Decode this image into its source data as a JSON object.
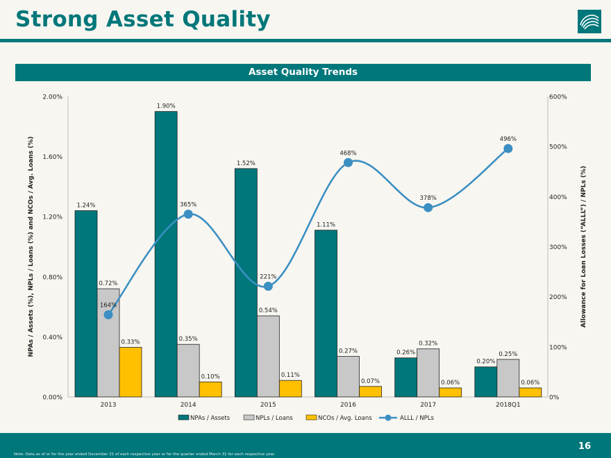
{
  "page": {
    "title": "Strong Asset Quality",
    "banner": "Asset Quality Trends",
    "page_number": "16",
    "footnote": "Note:  Data as of or for the year ended December 31 of each respective year or for the quarter ended March 31 for each respective year."
  },
  "colors": {
    "teal": "#00777a",
    "bar_gray": "#c8c8c8",
    "bar_gold": "#ffc000",
    "line_blue": "#3b8fc2"
  },
  "chart_data": {
    "type": "bar",
    "title": "Asset Quality Trends",
    "categories": [
      "2013",
      "2014",
      "2015",
      "2016",
      "2017",
      "2018Q1"
    ],
    "ylabel": "NPAs / Assets (%), NPLs / Loans (%) and NCOs / Avg. Loans (%)",
    "y2label": "Allowance for Loan Losses (“ALLL”) / NPLs (%)",
    "ylim": [
      0,
      2.0
    ],
    "y2lim": [
      0,
      600
    ],
    "yticks": [
      "0.00%",
      "0.40%",
      "0.80%",
      "1.20%",
      "1.60%",
      "2.00%"
    ],
    "y2ticks": [
      "0%",
      "100%",
      "200%",
      "300%",
      "400%",
      "500%",
      "600%"
    ],
    "legend_position": "bottom",
    "series": [
      {
        "name": "NPAs / Assets",
        "type": "bar",
        "color": "#00777a",
        "values": [
          1.24,
          1.9,
          1.52,
          1.11,
          0.26,
          0.2
        ],
        "labels": [
          "1.24%",
          "1.90%",
          "1.52%",
          "1.11%",
          "0.26%",
          "0.20%"
        ]
      },
      {
        "name": "NPLs / Loans",
        "type": "bar",
        "color": "#c8c8c8",
        "values": [
          0.72,
          0.35,
          0.54,
          0.27,
          0.32,
          0.25
        ],
        "labels": [
          "0.72%",
          "0.35%",
          "0.54%",
          "0.27%",
          "0.32%",
          "0.25%"
        ]
      },
      {
        "name": "NCOs / Avg. Loans",
        "type": "bar",
        "color": "#ffc000",
        "values": [
          0.33,
          0.1,
          0.11,
          0.07,
          0.06,
          0.06
        ],
        "labels": [
          "0.33%",
          "0.10%",
          "0.11%",
          "0.07%",
          "0.06%",
          "0.06%"
        ]
      },
      {
        "name": "ALLL / NPLs",
        "type": "line",
        "axis": "right",
        "color": "#3b8fc2",
        "values": [
          164,
          365,
          221,
          468,
          378,
          496
        ],
        "labels": [
          "164%",
          "365%",
          "221%",
          "468%",
          "378%",
          "496%"
        ]
      }
    ]
  }
}
